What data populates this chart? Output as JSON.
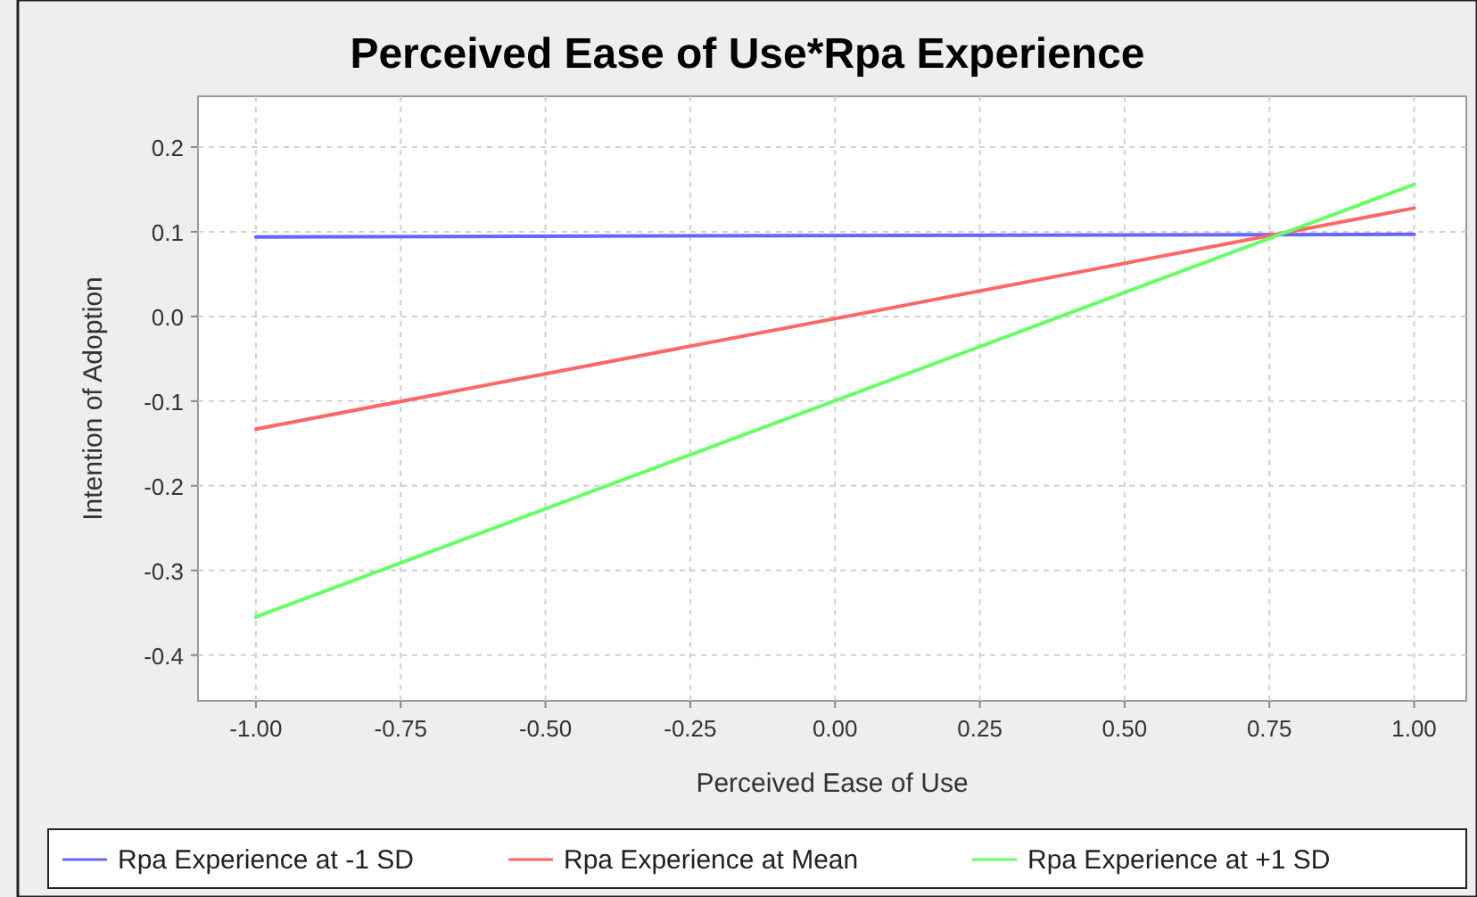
{
  "chart_data": {
    "type": "line",
    "title": "Perceived Ease of Use*Rpa Experience",
    "xlabel": "Perceived Ease of Use",
    "ylabel": "Intention of Adoption",
    "x": [
      -1,
      1
    ],
    "series": [
      {
        "name": "Rpa Experience at -1 SD",
        "color": "#6666ff",
        "values": [
          0.094,
          0.097
        ]
      },
      {
        "name": "Rpa Experience at Mean",
        "color": "#ff6666",
        "values": [
          -0.133,
          0.128
        ]
      },
      {
        "name": "Rpa Experience at +1 SD",
        "color": "#66ff66",
        "values": [
          -0.355,
          0.156
        ]
      }
    ],
    "xlim": [
      -1.1,
      1.09
    ],
    "xticks": [
      {
        "value": -1,
        "label": "-1.00"
      },
      {
        "value": -0.75,
        "label": "-0.75"
      },
      {
        "value": -0.5,
        "label": "-0.50"
      },
      {
        "value": -0.25,
        "label": "-0.25"
      },
      {
        "value": 0,
        "label": "0.00"
      },
      {
        "value": 0.25,
        "label": "0.25"
      },
      {
        "value": 0.5,
        "label": "0.50"
      },
      {
        "value": 0.75,
        "label": "0.75"
      },
      {
        "value": 1,
        "label": "1.00"
      }
    ],
    "ylim": [
      -0.454,
      0.26
    ],
    "yticks": [
      {
        "value": -0.4,
        "label": "-0.4"
      },
      {
        "value": -0.3,
        "label": "-0.3"
      },
      {
        "value": -0.2,
        "label": "-0.2"
      },
      {
        "value": -0.1,
        "label": "-0.1"
      },
      {
        "value": 0,
        "label": "0.0"
      },
      {
        "value": 0.1,
        "label": "0.1"
      },
      {
        "value": 0.2,
        "label": "0.2"
      }
    ],
    "grid": true,
    "legend": "bottom",
    "marker": "none",
    "line_style": "solid"
  }
}
